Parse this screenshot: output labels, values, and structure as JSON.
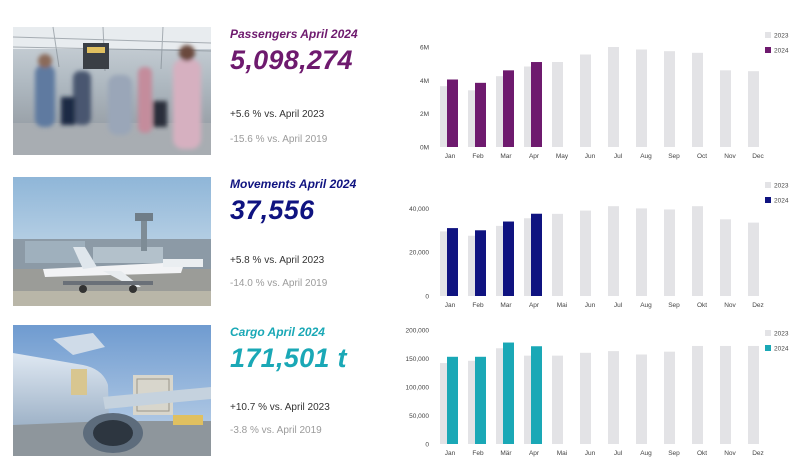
{
  "colors": {
    "grey_2023": "#e3e3e6",
    "passengers": "#6e1a6e",
    "movements": "#0f1380",
    "cargo": "#1aa8b6",
    "text_up": "#333333",
    "text_down": "#9b9b9b"
  },
  "panels": [
    {
      "id": "passengers",
      "photo_name": "terminal-passengers-photo",
      "title": "Passengers April 2024",
      "value": "5,098,274",
      "change_2023": "+5.6 % vs. April 2023",
      "change_2019": "-15.6 % vs. April 2019"
    },
    {
      "id": "movements",
      "photo_name": "airport-apron-photo",
      "title": "Movements April 2024",
      "value": "37,556",
      "change_2023": "+5.8 % vs. April 2023",
      "change_2019": "-14.0 % vs. April 2019"
    },
    {
      "id": "cargo",
      "photo_name": "cargo-loading-photo",
      "title": "Cargo April 2024",
      "value": "171,501 t",
      "change_2023": "+10.7 % vs. April 2023",
      "change_2019": "-3.8 % vs. April 2019"
    }
  ],
  "chart_data": [
    {
      "type": "bar",
      "categories": [
        "Jan",
        "Feb",
        "Mar",
        "Apr",
        "May",
        "Jun",
        "Jul",
        "Aug",
        "Sep",
        "Oct",
        "Nov",
        "Dec"
      ],
      "ylim": [
        0,
        6000000
      ],
      "yticks": [
        0,
        2000000,
        4000000,
        6000000
      ],
      "ytick_labels": [
        "0M",
        "2M",
        "4M",
        "6M"
      ],
      "legend": "top-right",
      "series": [
        {
          "name": "2023",
          "values": [
            3650000,
            3400000,
            4250000,
            4830000,
            5100000,
            5550000,
            6000000,
            5850000,
            5750000,
            5650000,
            4600000,
            4550000
          ]
        },
        {
          "name": "2024",
          "values": [
            4050000,
            3850000,
            4600000,
            5098274,
            null,
            null,
            null,
            null,
            null,
            null,
            null,
            null
          ]
        }
      ]
    },
    {
      "type": "bar",
      "categories": [
        "Jan",
        "Feb",
        "Mar",
        "Apr",
        "Mai",
        "Jun",
        "Jul",
        "Aug",
        "Sep",
        "Okt",
        "Nov",
        "Dez"
      ],
      "ylim": [
        0,
        42000
      ],
      "yticks": [
        0,
        20000,
        40000
      ],
      "ytick_labels": [
        "0",
        "20,000",
        "40,000"
      ],
      "legend": "top-right",
      "series": [
        {
          "name": "2023",
          "values": [
            29500,
            27500,
            32000,
            35500,
            37500,
            39000,
            41000,
            40000,
            39500,
            41000,
            35000,
            33500
          ]
        },
        {
          "name": "2024",
          "values": [
            31000,
            30000,
            34000,
            37556,
            null,
            null,
            null,
            null,
            null,
            null,
            null,
            null
          ]
        }
      ]
    },
    {
      "type": "bar",
      "categories": [
        "Jan",
        "Feb",
        "Mär",
        "Apr",
        "Mai",
        "Jun",
        "Jul",
        "Aug",
        "Sep",
        "Okt",
        "Nov",
        "Dez"
      ],
      "ylim": [
        0,
        200000
      ],
      "yticks": [
        0,
        50000,
        100000,
        150000,
        200000
      ],
      "ytick_labels": [
        "0",
        "50,000",
        "100,000",
        "150,000",
        "200,000"
      ],
      "legend": "top-right",
      "series": [
        {
          "name": "2023",
          "values": [
            142000,
            146000,
            168000,
            155000,
            155000,
            160000,
            163000,
            157000,
            162000,
            172000,
            172000,
            172000
          ]
        },
        {
          "name": "2024",
          "values": [
            153000,
            153000,
            178000,
            171501,
            null,
            null,
            null,
            null,
            null,
            null,
            null,
            null
          ]
        }
      ]
    }
  ]
}
